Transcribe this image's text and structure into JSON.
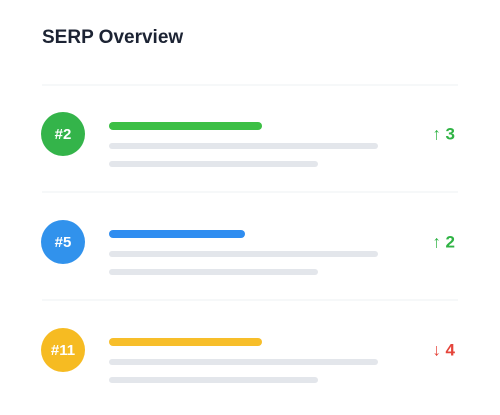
{
  "title": "SERP Overview",
  "rows": [
    {
      "rank": "#2",
      "change": "↑ 3"
    },
    {
      "rank": "#5",
      "change": "↑ 2"
    },
    {
      "rank": "#11",
      "change": "↓ 4"
    }
  ]
}
